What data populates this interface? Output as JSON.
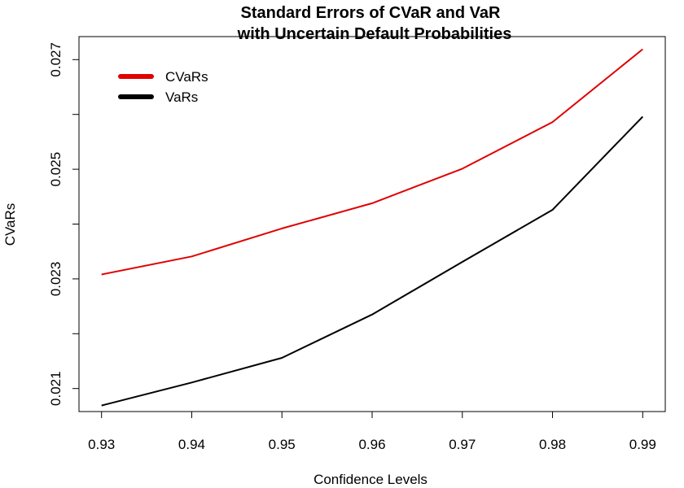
{
  "chart_data": {
    "type": "line",
    "title": "Standard Errors of CVaR and VaR",
    "subtitle": "with Uncertain Default Probabilities",
    "xlabel": "Confidence Levels",
    "ylabel": "CVaRs",
    "x": [
      0.93,
      0.94,
      0.95,
      0.96,
      0.97,
      0.98,
      0.99
    ],
    "x_tick_labels": [
      "0.93",
      "0.94",
      "0.95",
      "0.96",
      "0.97",
      "0.98",
      "0.99"
    ],
    "y_ticks": [
      0.021,
      0.022,
      0.023,
      0.024,
      0.025,
      0.026,
      0.027
    ],
    "y_tick_labels": [
      "0.021",
      "",
      "0.023",
      "",
      "0.025",
      "",
      "0.027"
    ],
    "xlim": [
      0.9275,
      0.9925
    ],
    "ylim": [
      0.02058,
      0.02742
    ],
    "grid": false,
    "legend_position": "top-left",
    "series": [
      {
        "name": "CVaRs",
        "color": "#e00000",
        "values": [
          0.02308,
          0.02341,
          0.02392,
          0.02438,
          0.02501,
          0.02586,
          0.02719
        ]
      },
      {
        "name": "VaRs",
        "color": "#000000",
        "values": [
          0.02069,
          0.02111,
          0.02156,
          0.02235,
          0.02331,
          0.02426,
          0.02596
        ]
      }
    ]
  }
}
